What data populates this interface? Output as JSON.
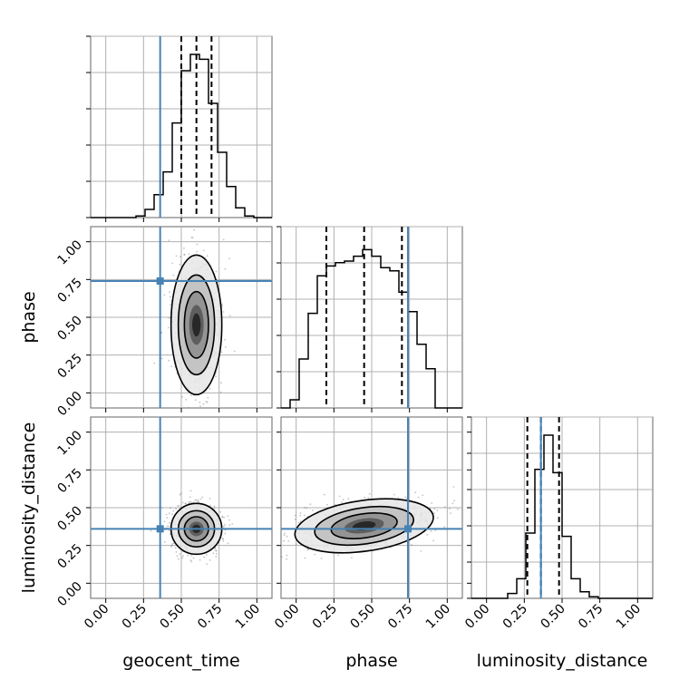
{
  "chart_data": {
    "type": "corner",
    "parameters": [
      "geocent_time",
      "phase",
      "luminosity_distance"
    ],
    "axis_labels": {
      "x": [
        "geocent_time",
        "phase",
        "luminosity_distance"
      ],
      "y": [
        "phase",
        "luminosity_distance"
      ]
    },
    "ticks": [
      0.0,
      0.25,
      0.5,
      0.75,
      1.0
    ],
    "tick_labels": [
      "0.00",
      "0.25",
      "0.50",
      "0.75",
      "1.00"
    ],
    "xlim": [
      -0.1,
      1.1
    ],
    "grid": true,
    "truths": {
      "geocent_time": 0.36,
      "phase": 0.74,
      "luminosity_distance": 0.36
    },
    "truth_color": "#4682b4",
    "quantiles": {
      "geocent_time": [
        0.5,
        0.6,
        0.7
      ],
      "phase": [
        0.2,
        0.45,
        0.7
      ],
      "luminosity_distance": [
        0.27,
        0.36,
        0.48
      ]
    },
    "histograms": {
      "bin_edges": [
        -0.1,
        -0.04,
        0.02,
        0.08,
        0.14,
        0.2,
        0.26,
        0.32,
        0.38,
        0.44,
        0.5,
        0.56,
        0.62,
        0.68,
        0.74,
        0.8,
        0.86,
        0.92,
        0.98,
        1.04,
        1.1
      ],
      "geocent_time": [
        0,
        0,
        0,
        0,
        0,
        0.01,
        0.05,
        0.14,
        0.28,
        0.58,
        0.9,
        1.0,
        0.97,
        0.7,
        0.4,
        0.19,
        0.06,
        0.01,
        0,
        0
      ],
      "phase": [
        0,
        0.05,
        0.3,
        0.58,
        0.81,
        0.87,
        0.89,
        0.9,
        0.93,
        0.97,
        0.93,
        0.86,
        0.84,
        0.71,
        0.59,
        0.39,
        0.24,
        0,
        0,
        0
      ],
      "luminosity_distance": [
        0,
        0,
        0,
        0,
        0.03,
        0.12,
        0.4,
        0.79,
        1.0,
        0.77,
        0.38,
        0.12,
        0.04,
        0.01,
        0,
        0,
        0,
        0,
        0,
        0
      ]
    },
    "contours_2d": [
      {
        "x": "geocent_time",
        "y": "phase",
        "center": [
          0.6,
          0.45
        ],
        "sigma": [
          0.08,
          0.22
        ],
        "rotation_deg": 0
      },
      {
        "x": "geocent_time",
        "y": "luminosity_distance",
        "center": [
          0.6,
          0.36
        ],
        "sigma": [
          0.08,
          0.08
        ],
        "rotation_deg": 0
      },
      {
        "x": "phase",
        "y": "luminosity_distance",
        "center": [
          0.45,
          0.38
        ],
        "sigma": [
          0.22,
          0.08
        ],
        "rotation_deg": -8
      }
    ],
    "colors": {
      "histogram": "#000000",
      "grid": "#b0b0b0",
      "contour_line": "#000000",
      "scatter": "#555555"
    }
  }
}
